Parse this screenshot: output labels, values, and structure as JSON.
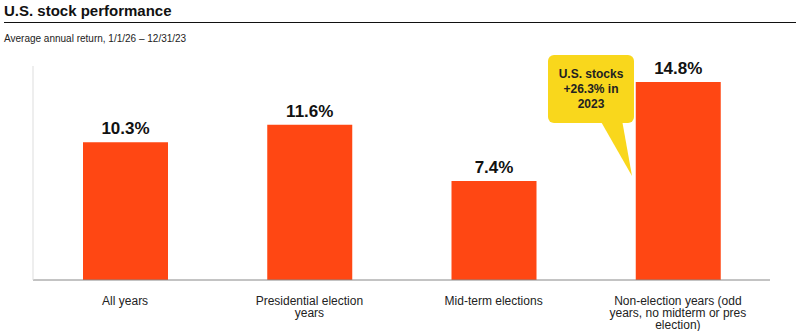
{
  "chart_data": {
    "type": "bar",
    "title": "U.S. stock performance",
    "subtitle": "Average annual return, 1/1/26 – 12/31/23",
    "categories": [
      "All years",
      "Presidential election years",
      "Mid-term elections",
      "Non-election years (odd years, no midterm or pres election)"
    ],
    "values": [
      10.3,
      11.6,
      7.4,
      14.8
    ],
    "value_labels": [
      "10.3%",
      "11.6%",
      "7.4%",
      "14.8%"
    ],
    "color": "#ff4713",
    "ylim": [
      0,
      16
    ],
    "data_labels": true,
    "tick_labels": "x",
    "annotation": "U.S. stocks +26.3% in 2023"
  }
}
